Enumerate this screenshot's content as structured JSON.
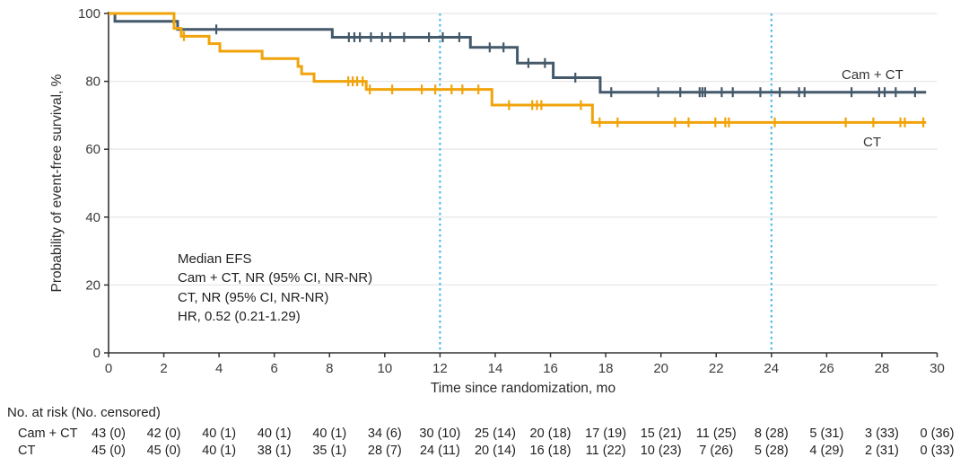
{
  "colors": {
    "cam_ct_line": "#44596a",
    "ct_line": "#f0a30a",
    "reference_line": "#41b6e6",
    "gridline": "#e7e7e7",
    "axis": "#333333"
  },
  "chart_data": {
    "type": "line",
    "subtype": "kaplan-meier-step",
    "title": "",
    "xlabel": "Time since randomization, mo",
    "ylabel": "Probability of event-free survival, %",
    "xlim": [
      0,
      30
    ],
    "ylim": [
      0,
      100
    ],
    "xticks": [
      0,
      2,
      4,
      6,
      8,
      10,
      12,
      14,
      16,
      18,
      20,
      22,
      24,
      26,
      28,
      30
    ],
    "yticks": [
      0,
      20,
      40,
      60,
      80,
      100
    ],
    "grid": "horizontal-light",
    "reference_vlines": {
      "x": [
        12,
        24
      ],
      "style": "dotted"
    },
    "series": [
      {
        "name": "Cam + CT",
        "label_short": "Cam + CT",
        "end_t": 29.6,
        "steps": [
          [
            0,
            100
          ],
          [
            0.23,
            97.7
          ],
          [
            2.5,
            95.3
          ],
          [
            8.1,
            93.0
          ],
          [
            13.1,
            90.0
          ],
          [
            14.8,
            85.4
          ],
          [
            16.1,
            81.1
          ],
          [
            17.8,
            76.8
          ]
        ],
        "censor_t": [
          3.9,
          8.7,
          8.9,
          9.1,
          9.5,
          9.9,
          10.2,
          10.7,
          11.6,
          12.1,
          12.7,
          13.8,
          14.3,
          15.2,
          15.8,
          16.9,
          18.2,
          19.9,
          20.7,
          21.4,
          21.5,
          21.6,
          22.2,
          22.6,
          23.6,
          24.3,
          25.0,
          25.2,
          26.9,
          27.9,
          28.1,
          28.5,
          29.2
        ]
      },
      {
        "name": "CT",
        "label_short": "CT",
        "end_t": 29.6,
        "steps": [
          [
            0,
            100
          ],
          [
            2.37,
            95.6
          ],
          [
            2.63,
            93.3
          ],
          [
            3.64,
            91.1
          ],
          [
            4.03,
            88.9
          ],
          [
            5.56,
            86.7
          ],
          [
            6.86,
            84.4
          ],
          [
            6.99,
            82.2
          ],
          [
            7.44,
            80.0
          ],
          [
            9.33,
            77.6
          ],
          [
            13.88,
            73.0
          ],
          [
            17.52,
            67.9
          ]
        ],
        "censor_t": [
          2.73,
          8.68,
          8.84,
          9.0,
          9.2,
          9.46,
          10.27,
          11.34,
          11.83,
          12.42,
          12.81,
          13.39,
          14.5,
          15.34,
          15.51,
          15.67,
          17.1,
          17.78,
          18.43,
          20.51,
          21.0,
          21.97,
          22.33,
          22.46,
          24.12,
          26.69,
          27.69,
          28.67,
          28.83,
          29.5
        ]
      }
    ],
    "annotation": {
      "lines": [
        "Median EFS",
        "Cam + CT, NR (95% CI, NR-NR)",
        "CT, NR (95% CI, NR-NR)",
        "HR, 0.52 (0.21-1.29)"
      ]
    },
    "risk_table": {
      "header": "No. at risk (No. censored)",
      "times": [
        0,
        2,
        4,
        6,
        8,
        10,
        12,
        14,
        16,
        18,
        20,
        22,
        24,
        26,
        28,
        30
      ],
      "rows": [
        {
          "label": "Cam + CT",
          "values": [
            "43 (0)",
            "42 (0)",
            "40 (1)",
            "40 (1)",
            "40 (1)",
            "34 (6)",
            "30 (10)",
            "25 (14)",
            "20 (18)",
            "17 (19)",
            "15 (21)",
            "11 (25)",
            "8 (28)",
            "5 (31)",
            "3 (33)",
            "0 (36)"
          ]
        },
        {
          "label": "CT",
          "values": [
            "45 (0)",
            "45 (0)",
            "40 (1)",
            "38 (1)",
            "35 (1)",
            "28 (7)",
            "24 (11)",
            "20 (14)",
            "16 (18)",
            "11 (22)",
            "10 (23)",
            "7 (26)",
            "5 (28)",
            "4 (29)",
            "2 (31)",
            "0 (33)"
          ]
        }
      ]
    }
  }
}
